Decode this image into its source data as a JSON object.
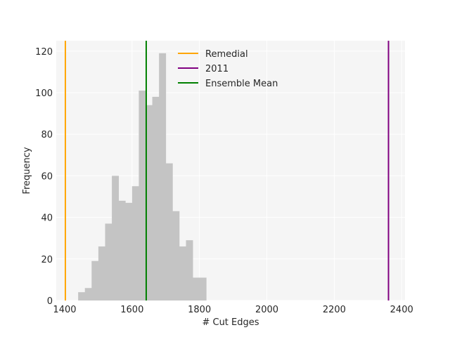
{
  "chart_data": {
    "type": "histogram",
    "xlabel": "# Cut Edges",
    "ylabel": "Frequency",
    "xlim": [
      1375,
      2410
    ],
    "ylim": [
      0,
      125
    ],
    "xticks": [
      1400,
      1600,
      1800,
      2000,
      2200,
      2400
    ],
    "yticks": [
      0,
      20,
      40,
      60,
      80,
      100,
      120
    ],
    "grid": true,
    "legend_position": "top-center",
    "bar_color": "#c4c4c4",
    "bins": [
      {
        "x0": 1440,
        "x1": 1460,
        "count": 4
      },
      {
        "x0": 1460,
        "x1": 1480,
        "count": 6
      },
      {
        "x0": 1480,
        "x1": 1500,
        "count": 19
      },
      {
        "x0": 1500,
        "x1": 1520,
        "count": 26
      },
      {
        "x0": 1520,
        "x1": 1540,
        "count": 37
      },
      {
        "x0": 1540,
        "x1": 1560,
        "count": 60
      },
      {
        "x0": 1560,
        "x1": 1580,
        "count": 48
      },
      {
        "x0": 1580,
        "x1": 1600,
        "count": 47
      },
      {
        "x0": 1600,
        "x1": 1620,
        "count": 55
      },
      {
        "x0": 1620,
        "x1": 1640,
        "count": 101
      },
      {
        "x0": 1640,
        "x1": 1660,
        "count": 94
      },
      {
        "x0": 1660,
        "x1": 1680,
        "count": 98
      },
      {
        "x0": 1680,
        "x1": 1700,
        "count": 119
      },
      {
        "x0": 1700,
        "x1": 1720,
        "count": 66
      },
      {
        "x0": 1720,
        "x1": 1740,
        "count": 43
      },
      {
        "x0": 1740,
        "x1": 1760,
        "count": 26
      },
      {
        "x0": 1760,
        "x1": 1780,
        "count": 29
      },
      {
        "x0": 1780,
        "x1": 1800,
        "count": 11
      },
      {
        "x0": 1800,
        "x1": 1820,
        "count": 11
      }
    ],
    "vlines": [
      {
        "name": "Remedial",
        "x": 1402,
        "color": "#ffa500"
      },
      {
        "name": "2011",
        "x": 2361,
        "color": "#800080"
      },
      {
        "name": "Ensemble Mean",
        "x": 1642,
        "color": "#008000"
      }
    ]
  }
}
